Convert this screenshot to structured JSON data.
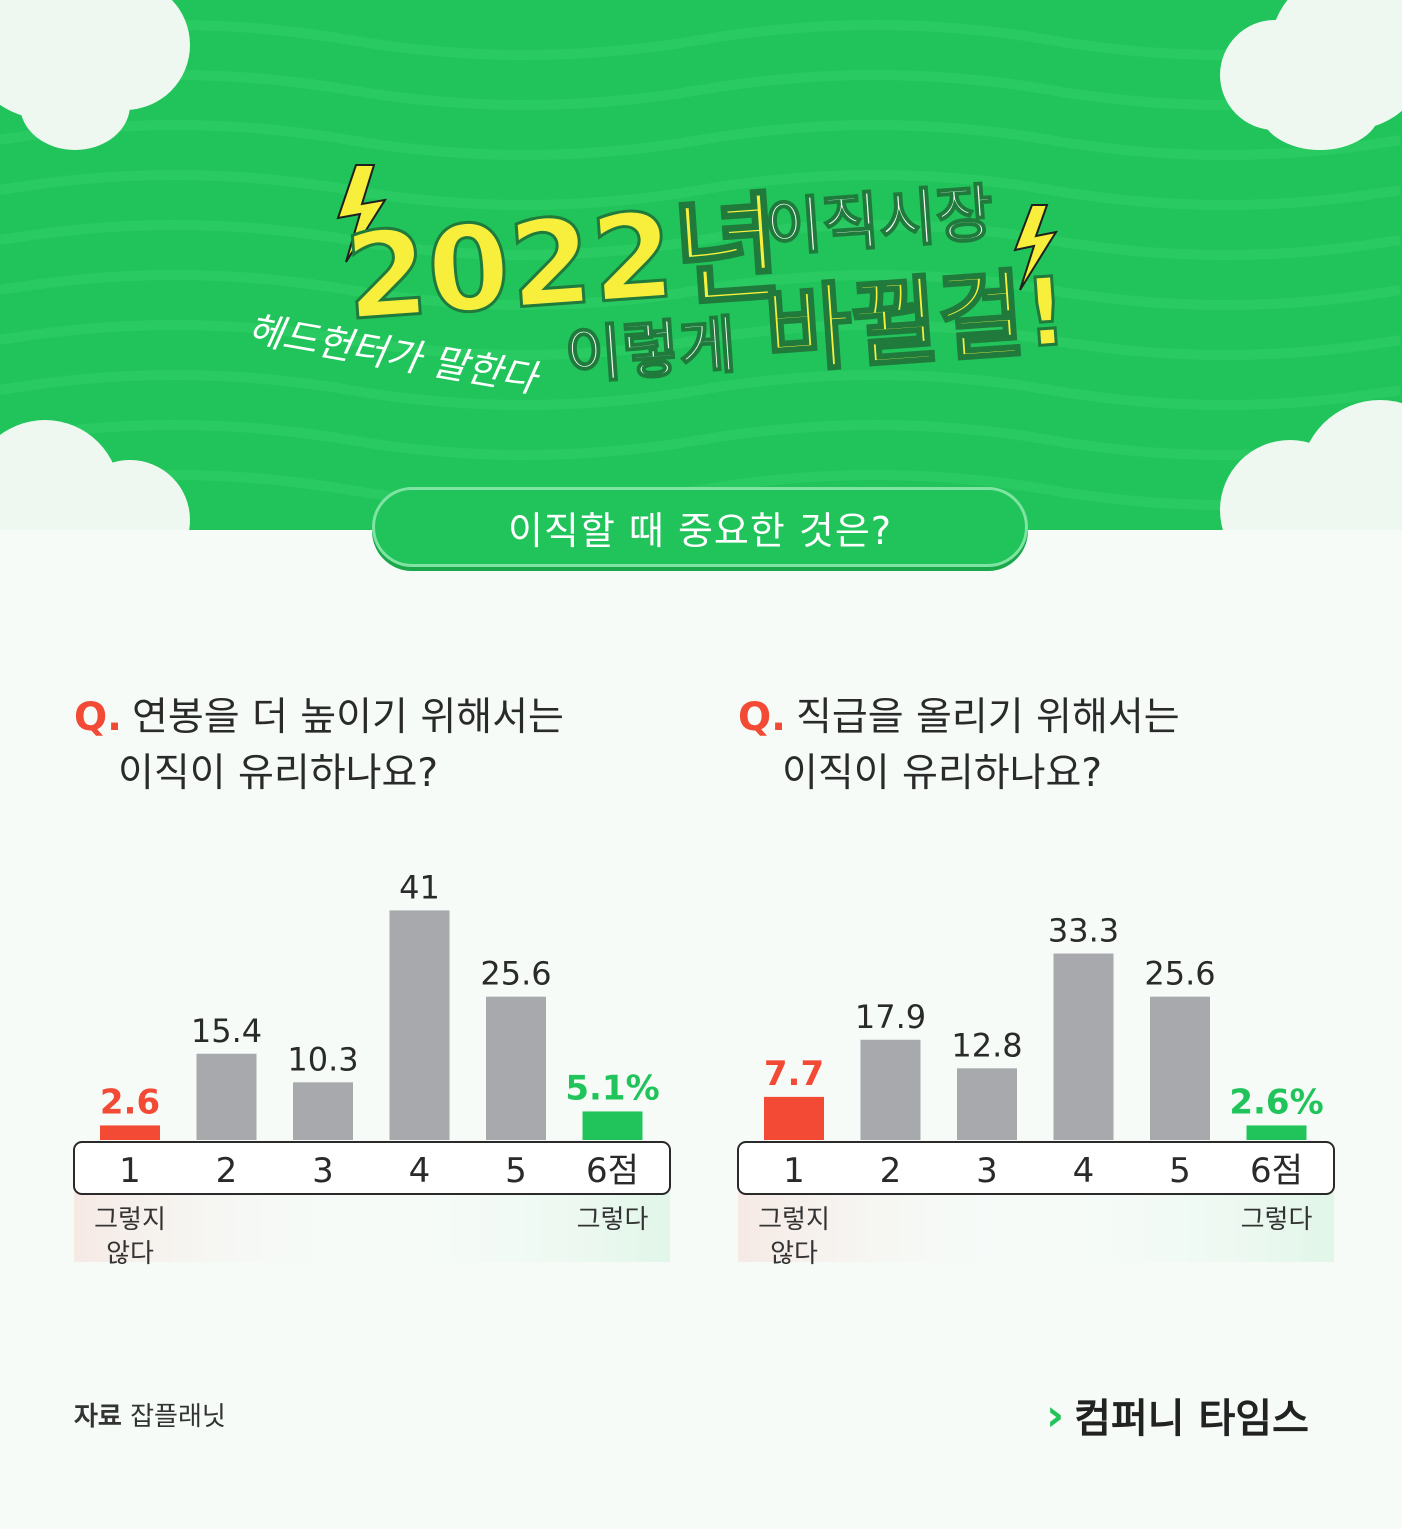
{
  "header": {
    "year": "2022년",
    "market": "이직시장",
    "change1": "이렇게",
    "change2": "바뀔걸!",
    "byline": "헤드헌터가 말한다",
    "subtitle": "이직할 때 중요한 것은?"
  },
  "colors": {
    "green": "#21c45a",
    "red": "#f24a35",
    "gray": "#a7a9ad",
    "yellow": "#f7ef3c"
  },
  "chart_data": [
    {
      "type": "bar",
      "title_q": "Q.",
      "title_line1": "연봉을 더 높이기 위해서는",
      "title_line2": "이직이 유리하나요?",
      "categories": [
        "1",
        "2",
        "3",
        "4",
        "5",
        "6점"
      ],
      "values": [
        2.6,
        15.4,
        10.3,
        41,
        25.6,
        5.1
      ],
      "value_labels": [
        "2.6",
        "15.4",
        "10.3",
        "41",
        "25.6",
        "5.1%"
      ],
      "low_label": "그렇지 않다",
      "low_label_l1": "그렇지",
      "low_label_l2": "않다",
      "high_label": "그렇다"
    },
    {
      "type": "bar",
      "title_q": "Q.",
      "title_line1": "직급을 올리기 위해서는",
      "title_line2": "이직이 유리하나요?",
      "categories": [
        "1",
        "2",
        "3",
        "4",
        "5",
        "6점"
      ],
      "values": [
        7.7,
        17.9,
        12.8,
        33.3,
        25.6,
        2.6
      ],
      "value_labels": [
        "7.7",
        "17.9",
        "12.8",
        "33.3",
        "25.6",
        "2.6%"
      ],
      "low_label": "그렇지 않다",
      "low_label_l1": "그렇지",
      "low_label_l2": "않다",
      "high_label": "그렇다"
    }
  ],
  "footer": {
    "source_label": "자료",
    "source_name": "잡플래닛",
    "brand": "컴퍼니 타임스",
    "brand_mark": "›"
  }
}
